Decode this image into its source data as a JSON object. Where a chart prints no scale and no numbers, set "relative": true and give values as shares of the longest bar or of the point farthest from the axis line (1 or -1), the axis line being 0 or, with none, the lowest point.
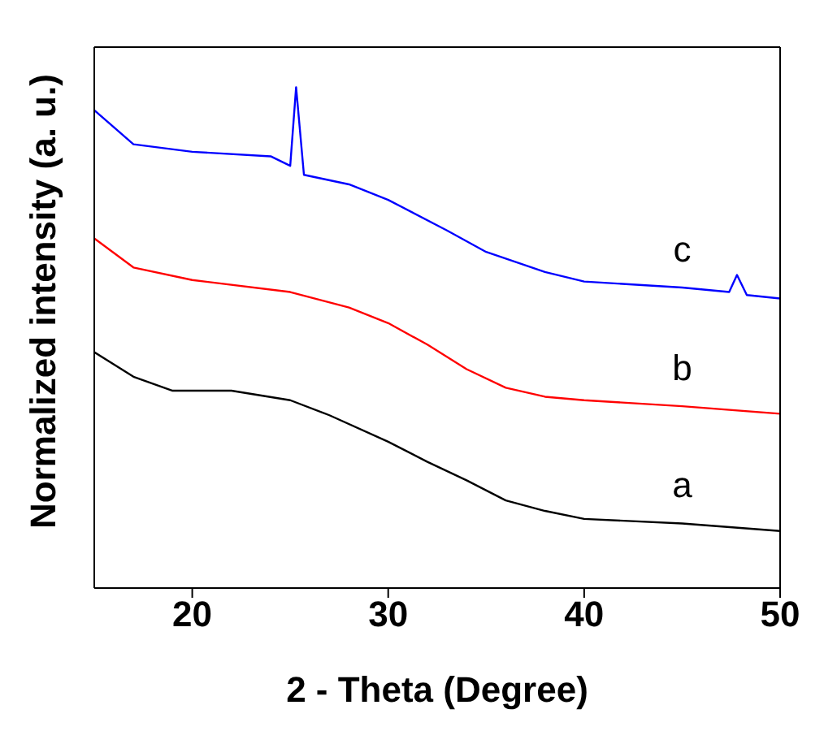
{
  "chart_data": {
    "type": "line",
    "xlabel": "2 - Theta (Degree)",
    "ylabel": "Normalized intensity (a. u.)",
    "relative": true,
    "xlim": [
      15,
      50
    ],
    "xticks": [
      20,
      30,
      40,
      50
    ],
    "marker": "none",
    "line_style": "solid",
    "series": [
      {
        "name": "a",
        "color": "#000000",
        "x": [
          15,
          17,
          19,
          22,
          25,
          27,
          30,
          32,
          34,
          36,
          38,
          40,
          45,
          50
        ],
        "values": [
          0.471,
          0.422,
          0.394,
          0.394,
          0.375,
          0.345,
          0.292,
          0.252,
          0.215,
          0.175,
          0.154,
          0.138,
          0.129,
          0.114
        ]
      },
      {
        "name": "b",
        "color": "#ff0000",
        "x": [
          15,
          17,
          20,
          25,
          28,
          30,
          32,
          34,
          36,
          38,
          40,
          45,
          50
        ],
        "values": [
          0.698,
          0.64,
          0.615,
          0.591,
          0.56,
          0.529,
          0.486,
          0.437,
          0.4,
          0.382,
          0.375,
          0.363,
          0.348
        ]
      },
      {
        "name": "c",
        "color": "#0000ff",
        "x": [
          15,
          17,
          20,
          24,
          25,
          25.3,
          25.7,
          28,
          30,
          33,
          35,
          38,
          40,
          45,
          47.4,
          47.8,
          48.3,
          50
        ],
        "values": [
          0.954,
          0.886,
          0.871,
          0.862,
          0.843,
          1,
          0.825,
          0.806,
          0.775,
          0.714,
          0.671,
          0.631,
          0.612,
          0.6,
          0.591,
          0.625,
          0.585,
          0.578
        ]
      }
    ]
  }
}
